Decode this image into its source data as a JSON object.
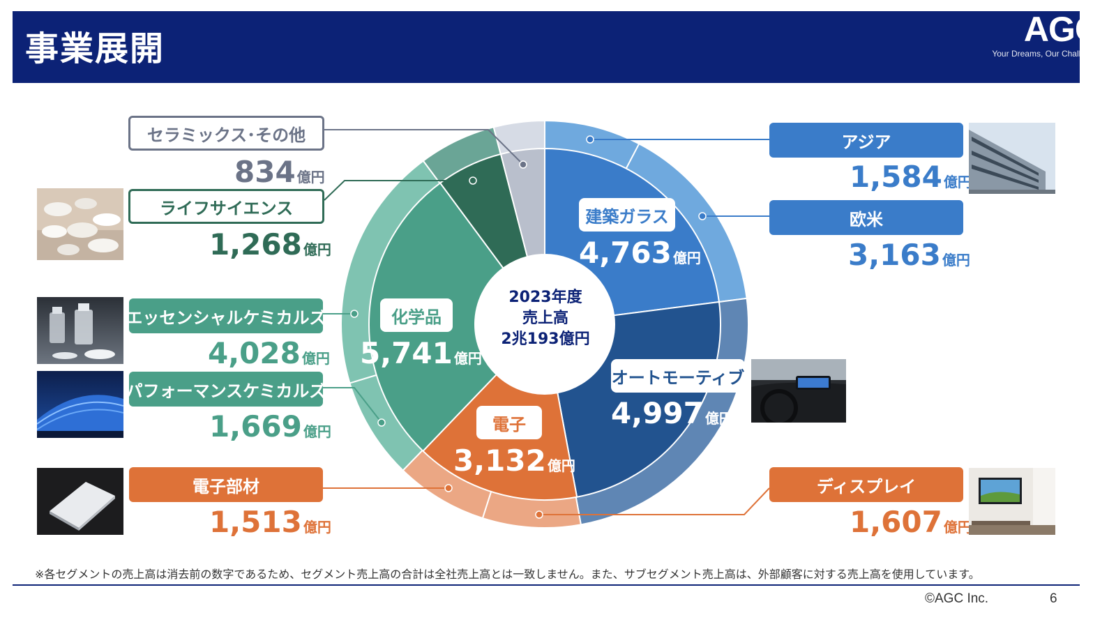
{
  "header": {
    "title": "事業展開",
    "logo_text": "AGC",
    "logo_tagline": "Your Dreams, Our Challenge"
  },
  "center": {
    "line1": "2023年度",
    "line2": "売上高",
    "line3": "2兆193億円"
  },
  "unit": "億円",
  "segments": {
    "glass": {
      "name": "建築ガラス",
      "value": "4,763"
    },
    "automotive": {
      "name": "オートモーティブ",
      "value": "4,997"
    },
    "electronics": {
      "name": "電子",
      "value": "3,132"
    },
    "chemicals": {
      "name": "化学品",
      "value": "5,741"
    }
  },
  "subsegments": {
    "asia": {
      "name": "アジア",
      "value": "1,584"
    },
    "europe_america": {
      "name": "欧米",
      "value": "3,163"
    },
    "display": {
      "name": "ディスプレイ",
      "value": "1,607"
    },
    "electronic_materials": {
      "name": "電子部材",
      "value": "1,513"
    },
    "performance_chem": {
      "name": "パフォーマンスケミカルズ",
      "value": "1,669"
    },
    "essential_chem": {
      "name": "エッセンシャルケミカルズ",
      "value": "4,028"
    },
    "life_science": {
      "name": "ライフサイエンス",
      "value": "1,268"
    },
    "ceramics": {
      "name": "セラミックス･その他",
      "value": "834"
    }
  },
  "footnote": "※各セグメントの売上高は消去前の数字であるため、セグメント売上高の合計は全社売上高とは一致しません。また、サブセグメント売上高は、外部顧客に対する売上高を使用しています。",
  "copyright": "©AGC Inc.",
  "page_number": "6",
  "colors": {
    "navy": "#0c2276",
    "glass": "#3a7cc9",
    "automotive": "#22538f",
    "electronics": "#de7238",
    "chemicals": "#4a9f88",
    "life_science": "#2f6b56",
    "ceramics": "#b9bfcc"
  },
  "chart_data": {
    "type": "pie",
    "center_label": "2023年度 売上高 2兆193億円",
    "unit": "億円",
    "inner": [
      {
        "name": "建築ガラス",
        "value": 4763,
        "color": "#3a7cc9"
      },
      {
        "name": "オートモーティブ",
        "value": 4997,
        "color": "#22538f"
      },
      {
        "name": "電子",
        "value": 3132,
        "color": "#de7238"
      },
      {
        "name": "化学品",
        "value": 5741,
        "color": "#4a9f88"
      },
      {
        "name": "",
        "value": 1268,
        "color": "#2f6b56"
      },
      {
        "name": "",
        "value": 834,
        "color": "#b9bfcc"
      }
    ],
    "outer": [
      {
        "name": "アジア",
        "value": 1584,
        "color": "#6fa9de"
      },
      {
        "name": "欧米",
        "value": 3163,
        "color": "#6fa9de"
      },
      {
        "name": "",
        "value": 4997,
        "color": "#5f86b4"
      },
      {
        "name": "ディスプレイ",
        "value": 1607,
        "color": "#eba784"
      },
      {
        "name": "電子部材",
        "value": 1513,
        "color": "#eba784"
      },
      {
        "name": "パフォーマンスケミカルズ",
        "value": 1669,
        "color": "#7fc3b1"
      },
      {
        "name": "エッセンシャルケミカルズ",
        "value": 4028,
        "color": "#7fc3b1"
      },
      {
        "name": "ライフサイエンス",
        "value": 1268,
        "color": "#6aa596"
      },
      {
        "name": "セラミックス･その他",
        "value": 834,
        "color": "#d6dbe5"
      }
    ]
  }
}
